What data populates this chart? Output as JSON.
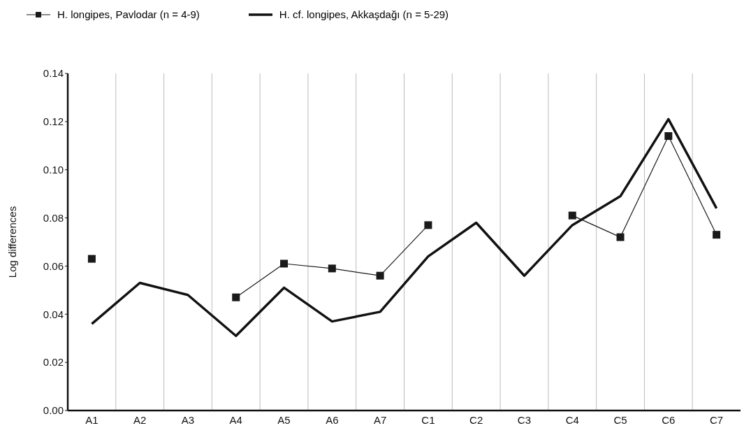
{
  "chart_data": {
    "type": "line",
    "ylabel": "Log differences",
    "categories": [
      "A1",
      "A2",
      "A3",
      "A4",
      "A5",
      "A6",
      "A7",
      "C1",
      "C2",
      "C3",
      "C4",
      "C5",
      "C6",
      "C7"
    ],
    "series": [
      {
        "name": "H. longipes, Pavlodar (n = 4-9)",
        "color": "#1a1a1a",
        "marker": "square",
        "values": [
          0.063,
          null,
          null,
          0.047,
          0.061,
          0.059,
          0.056,
          0.077,
          null,
          null,
          0.081,
          0.072,
          0.114,
          0.073
        ]
      },
      {
        "name": "H. cf. longipes, Akkaşdağı (n = 5-29)",
        "color": "#111111",
        "marker": "none",
        "values": [
          0.036,
          0.053,
          0.048,
          0.031,
          0.051,
          0.037,
          0.041,
          0.064,
          0.078,
          0.056,
          0.077,
          0.089,
          0.121,
          0.084
        ]
      }
    ],
    "ylim": [
      0,
      0.14
    ],
    "yticks": [
      {
        "value": 0,
        "label": "0.00"
      },
      {
        "value": 0.02,
        "label": "0.02"
      },
      {
        "value": 0.04,
        "label": "0.04"
      },
      {
        "value": 0.06,
        "label": "0.06"
      },
      {
        "value": 0.08,
        "label": "0.08"
      },
      {
        "value": 0.1,
        "label": "0.10"
      },
      {
        "value": 0.12,
        "label": "0.12"
      },
      {
        "value": 0.14,
        "label": "0.14"
      }
    ],
    "grid": "x",
    "legend": "top left",
    "line_style": "solid"
  }
}
